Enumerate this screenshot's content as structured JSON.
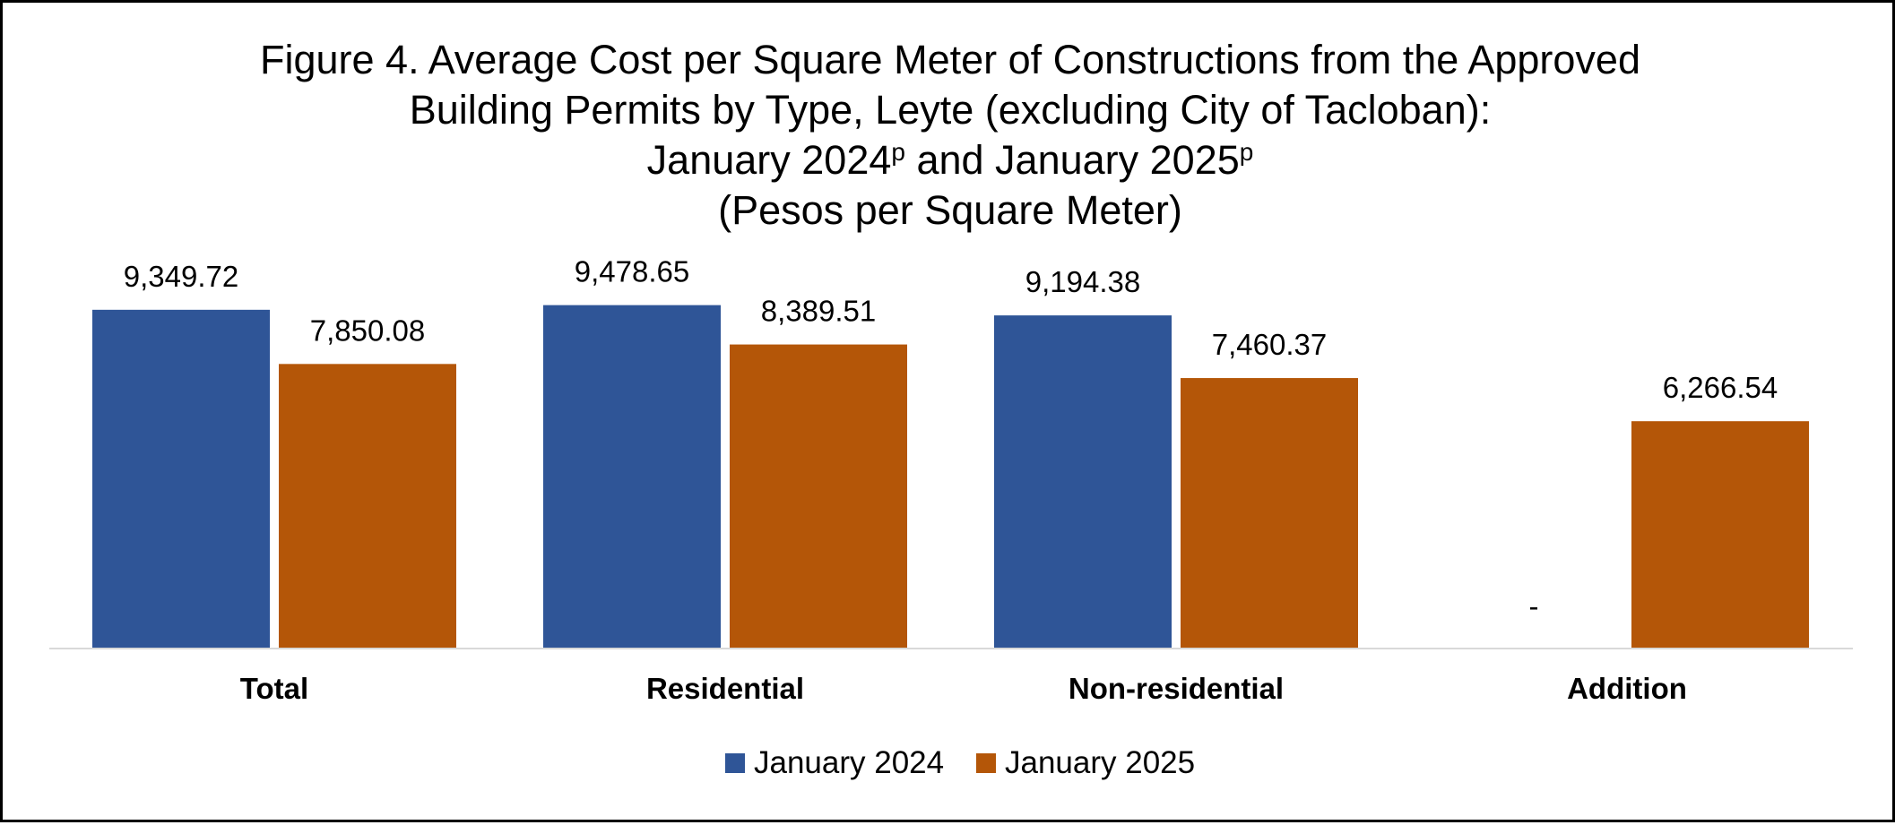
{
  "chart_data": {
    "type": "bar",
    "title_lines": [
      "Figure 4. Average Cost per Square Meter of Constructions from the Approved",
      "Building Permits by Type, Leyte (excluding City of Tacloban):"
    ],
    "title_line3": {
      "part1": "January 2024",
      "sup1": "p",
      "part2": " and January 2025",
      "sup2": "p"
    },
    "subtitle": "(Pesos per Square Meter)",
    "categories": [
      "Total",
      "Residential",
      "Non-residential",
      "Addition"
    ],
    "series": [
      {
        "name": "January 2024",
        "color": "#2F5597",
        "values": [
          9349.72,
          9478.65,
          9194.38,
          null
        ],
        "labels": [
          "9,349.72",
          "9,478.65",
          "9,194.38",
          "-"
        ]
      },
      {
        "name": "January 2025",
        "color": "#B45608",
        "values": [
          7850.08,
          8389.51,
          7460.37,
          6266.54
        ],
        "labels": [
          "7,850.08",
          "8,389.51",
          "7,460.37",
          "6,266.54"
        ]
      }
    ],
    "ylim": [
      0,
      14000
    ],
    "grid": false,
    "axis_line_color": "#D9D9D9",
    "legend_position": "bottom"
  }
}
